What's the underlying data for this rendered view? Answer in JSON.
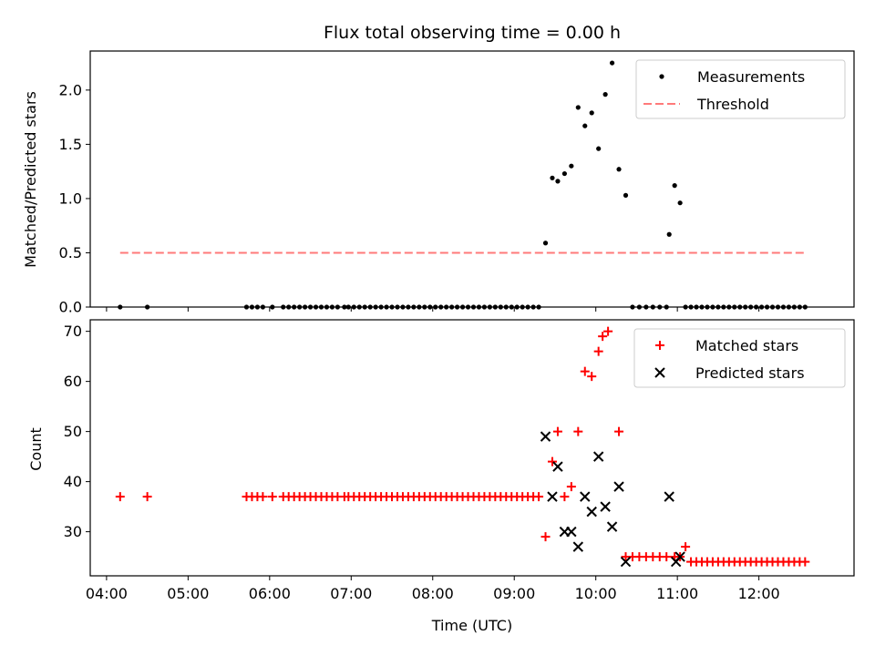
{
  "figure": {
    "title": "Flux total observing time = 0.00 h",
    "xlabel": "Time (UTC)",
    "x_ticks": [
      "04:00",
      "05:00",
      "06:00",
      "07:00",
      "08:00",
      "09:00",
      "10:00",
      "11:00",
      "12:00"
    ]
  },
  "chart_data": [
    {
      "type": "scatter",
      "ylabel": "Matched/Predicted stars",
      "xlim": [
        "03:48",
        "13:10"
      ],
      "ylim": [
        0,
        2.36
      ],
      "y_ticks": [
        "0.0",
        "0.5",
        "1.0",
        "1.5",
        "2.0"
      ],
      "legend_position": "upper right",
      "series": [
        {
          "name": "Measurements",
          "kind": "points",
          "color": "#000000",
          "x": [
            "04:10",
            "04:30",
            "05:43",
            "05:47",
            "05:51",
            "05:55",
            "06:02",
            "06:10",
            "06:14",
            "06:18",
            "06:22",
            "06:26",
            "06:30",
            "06:34",
            "06:38",
            "06:42",
            "06:46",
            "06:50",
            "06:55",
            "06:58",
            "07:02",
            "07:06",
            "07:10",
            "07:14",
            "07:18",
            "07:22",
            "07:26",
            "07:30",
            "07:34",
            "07:38",
            "07:42",
            "07:46",
            "07:50",
            "07:54",
            "07:58",
            "08:02",
            "08:06",
            "08:10",
            "08:14",
            "08:18",
            "08:22",
            "08:26",
            "08:30",
            "08:34",
            "08:38",
            "08:42",
            "08:46",
            "08:50",
            "08:54",
            "08:58",
            "09:02",
            "09:06",
            "09:10",
            "09:14",
            "09:18",
            "09:23",
            "09:28",
            "09:32",
            "09:37",
            "09:42",
            "09:47",
            "09:52",
            "09:57",
            "10:02",
            "10:07",
            "10:12",
            "10:17",
            "10:22",
            "10:27",
            "10:32",
            "10:37",
            "10:42",
            "10:47",
            "10:52",
            "10:54",
            "10:58",
            "11:02",
            "11:06",
            "11:10",
            "11:14",
            "11:18",
            "11:22",
            "11:26",
            "11:30",
            "11:34",
            "11:38",
            "11:42",
            "11:46",
            "11:50",
            "11:54",
            "11:58",
            "12:02",
            "12:06",
            "12:10",
            "12:14",
            "12:18",
            "12:22",
            "12:26",
            "12:30",
            "12:34"
          ],
          "y": [
            0,
            0,
            0,
            0,
            0,
            0,
            0,
            0,
            0,
            0,
            0,
            0,
            0,
            0,
            0,
            0,
            0,
            0,
            0,
            0,
            0,
            0,
            0,
            0,
            0,
            0,
            0,
            0,
            0,
            0,
            0,
            0,
            0,
            0,
            0,
            0,
            0,
            0,
            0,
            0,
            0,
            0,
            0,
            0,
            0,
            0,
            0,
            0,
            0,
            0,
            0,
            0,
            0,
            0,
            0,
            0.59,
            1.19,
            1.16,
            1.23,
            1.3,
            1.84,
            1.67,
            1.79,
            1.46,
            1.96,
            2.25,
            1.27,
            1.03,
            0,
            0,
            0,
            0,
            0,
            0,
            0.67,
            1.12,
            0.96,
            0,
            0,
            0,
            0,
            0,
            0,
            0,
            0,
            0,
            0,
            0,
            0,
            0,
            0,
            0,
            0,
            0,
            0,
            0,
            0,
            0,
            0,
            0
          ]
        },
        {
          "name": "Threshold",
          "kind": "dashed-line",
          "color": "#ff7a7a",
          "x": [
            "04:10",
            "12:34"
          ],
          "y": [
            0.5,
            0.5
          ]
        }
      ]
    },
    {
      "type": "scatter",
      "ylabel": "Count",
      "xlim": [
        "03:48",
        "13:10"
      ],
      "ylim": [
        21.2,
        72.3
      ],
      "y_ticks": [
        "30",
        "40",
        "50",
        "60",
        "70"
      ],
      "legend_position": "upper right",
      "series": [
        {
          "name": "Matched stars",
          "kind": "plus",
          "color": "#ff0000",
          "x": [
            "04:10",
            "04:30",
            "05:43",
            "05:47",
            "05:51",
            "05:55",
            "06:02",
            "06:10",
            "06:14",
            "06:18",
            "06:22",
            "06:26",
            "06:30",
            "06:34",
            "06:38",
            "06:42",
            "06:46",
            "06:50",
            "06:55",
            "06:58",
            "07:02",
            "07:06",
            "07:10",
            "07:14",
            "07:18",
            "07:22",
            "07:26",
            "07:30",
            "07:34",
            "07:38",
            "07:42",
            "07:46",
            "07:50",
            "07:54",
            "07:58",
            "08:02",
            "08:06",
            "08:10",
            "08:14",
            "08:18",
            "08:22",
            "08:26",
            "08:30",
            "08:34",
            "08:38",
            "08:42",
            "08:46",
            "08:50",
            "08:54",
            "08:58",
            "09:02",
            "09:06",
            "09:10",
            "09:14",
            "09:18",
            "09:23",
            "09:28",
            "09:32",
            "09:37",
            "09:42",
            "09:47",
            "09:52",
            "09:57",
            "10:02",
            "10:05",
            "10:09",
            "10:17",
            "10:22",
            "10:27",
            "10:32",
            "10:37",
            "10:42",
            "10:47",
            "10:52",
            "10:58",
            "11:02",
            "11:06",
            "11:10",
            "11:14",
            "11:18",
            "11:22",
            "11:26",
            "11:30",
            "11:34",
            "11:38",
            "11:42",
            "11:46",
            "11:50",
            "11:54",
            "11:58",
            "12:02",
            "12:06",
            "12:10",
            "12:14",
            "12:18",
            "12:22",
            "12:26",
            "12:30",
            "12:34"
          ],
          "y": [
            37,
            37,
            37,
            37,
            37,
            37,
            37,
            37,
            37,
            37,
            37,
            37,
            37,
            37,
            37,
            37,
            37,
            37,
            37,
            37,
            37,
            37,
            37,
            37,
            37,
            37,
            37,
            37,
            37,
            37,
            37,
            37,
            37,
            37,
            37,
            37,
            37,
            37,
            37,
            37,
            37,
            37,
            37,
            37,
            37,
            37,
            37,
            37,
            37,
            37,
            37,
            37,
            37,
            37,
            37,
            29,
            44,
            50,
            37,
            39,
            50,
            62,
            61,
            66,
            69,
            70,
            50,
            25,
            25,
            25,
            25,
            25,
            25,
            25,
            25,
            25,
            27,
            24,
            24,
            24,
            24,
            24,
            24,
            24,
            24,
            24,
            24,
            24,
            24,
            24,
            24,
            24,
            24,
            24,
            24,
            24,
            24,
            24,
            24
          ]
        },
        {
          "name": "Predicted stars",
          "kind": "x",
          "color": "#000000",
          "x": [
            "09:23",
            "09:28",
            "09:32",
            "09:37",
            "09:42",
            "09:47",
            "09:52",
            "09:57",
            "10:02",
            "10:07",
            "10:12",
            "10:17",
            "10:22",
            "10:54",
            "10:59",
            "11:02"
          ],
          "y": [
            49,
            37,
            43,
            30,
            30,
            27,
            37,
            34,
            45,
            35,
            31,
            39,
            24,
            37,
            24,
            25
          ]
        }
      ]
    }
  ]
}
